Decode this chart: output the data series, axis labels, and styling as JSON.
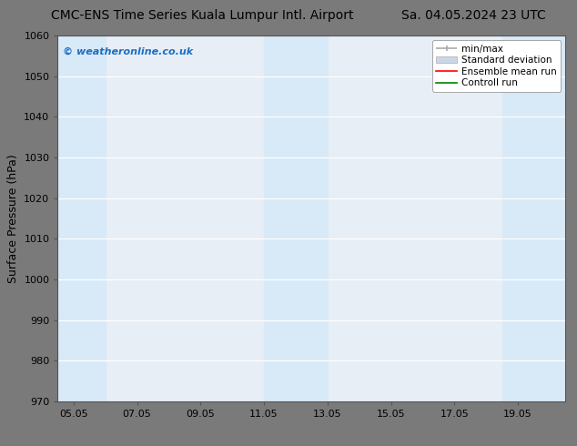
{
  "title_left": "CMC-ENS Time Series Kuala Lumpur Intl. Airport",
  "title_right": "Sa. 04.05.2024 23 UTC",
  "ylabel": "Surface Pressure (hPa)",
  "ylim": [
    970,
    1060
  ],
  "yticks": [
    970,
    980,
    990,
    1000,
    1010,
    1020,
    1030,
    1040,
    1050,
    1060
  ],
  "xtick_labels": [
    "05.05",
    "07.05",
    "09.05",
    "11.05",
    "13.05",
    "15.05",
    "17.05",
    "19.05"
  ],
  "xtick_positions": [
    0,
    2,
    4,
    6,
    8,
    10,
    12,
    14
  ],
  "x_min": -0.5,
  "x_max": 15.5,
  "shaded_bands": [
    {
      "x_start": -0.5,
      "x_end": 1.0
    },
    {
      "x_start": 6.0,
      "x_end": 8.0
    },
    {
      "x_start": 13.5,
      "x_end": 15.5
    }
  ],
  "shade_color": "#d8e9f7",
  "plot_bg_color": "#e8eef5",
  "fig_bg_color": "#7a7a7a",
  "watermark_text": "© weatheronline.co.uk",
  "watermark_color": "#1a6fc4",
  "grid_color": "#ffffff",
  "title_fontsize": 10,
  "axis_label_fontsize": 9,
  "tick_fontsize": 8,
  "legend_fontsize": 7.5,
  "spine_color": "#555555"
}
